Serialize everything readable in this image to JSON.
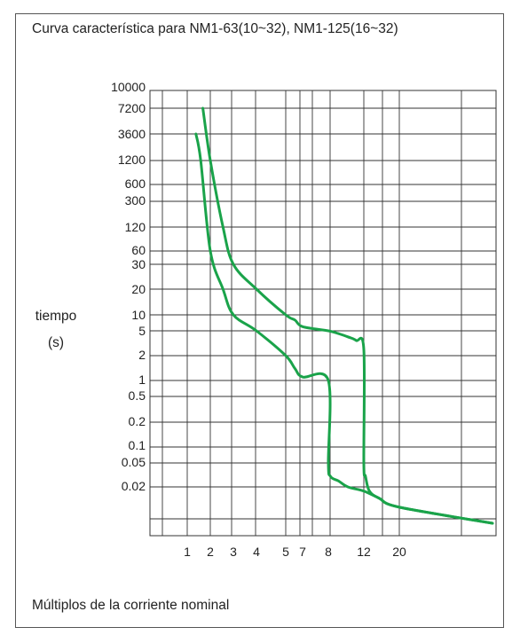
{
  "chart_data": {
    "type": "line",
    "title": "Curva característica para NM1-63(10~32), NM1-125(16~32)",
    "xlabel": "Múltiplos de la corriente nominal",
    "ylabel": [
      "tiempo",
      "(s)"
    ],
    "x_ticks": [
      "1",
      "2",
      "3",
      "4",
      "5",
      "7",
      "8",
      "12",
      "20"
    ],
    "y_ticks": [
      "10000",
      "7200",
      "3600",
      "1200",
      "600",
      "300",
      "120",
      "60",
      "30",
      "20",
      "10",
      "5",
      "2",
      "1",
      "0.5",
      "0.2",
      "0.1",
      "0.05",
      "0.02"
    ],
    "grid": true,
    "line_color": "#1aa34a",
    "series": [
      {
        "x": [
          1.3,
          1.5,
          2.0,
          2.5,
          3.0,
          4.0,
          5.0,
          6.0,
          7.0,
          8.0,
          8.0,
          8.2,
          9.0,
          10.0,
          12.0,
          15.0,
          20.0,
          30.0
        ],
        "y": [
          3600,
          1200,
          60,
          20,
          10,
          5,
          2,
          1.4,
          1.1,
          1,
          0.05,
          0.03,
          0.025,
          0.02,
          0.018,
          0.015,
          0.012,
          0.008
        ]
      },
      {
        "x": [
          1.6,
          2.0,
          2.5,
          3.0,
          4.0,
          5.0,
          6.0,
          7.0,
          8.0,
          9.0,
          10.0,
          11.0,
          12.0,
          12.0,
          12.3,
          13.0,
          15.0,
          20.0,
          30.0
        ],
        "y": [
          7200,
          1200,
          120,
          30,
          20,
          10,
          8,
          6,
          5,
          4.5,
          4,
          3.5,
          2.5,
          0.05,
          0.03,
          0.018,
          0.015,
          0.012,
          0.008
        ]
      }
    ]
  }
}
